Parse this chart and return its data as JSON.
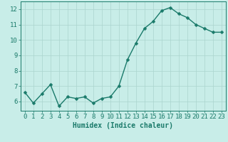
{
  "x": [
    0,
    1,
    2,
    3,
    4,
    5,
    6,
    7,
    8,
    9,
    10,
    11,
    12,
    13,
    14,
    15,
    16,
    17,
    18,
    19,
    20,
    21,
    22,
    23
  ],
  "y": [
    6.6,
    5.9,
    6.5,
    7.1,
    5.7,
    6.3,
    6.2,
    6.3,
    5.9,
    6.2,
    6.3,
    7.0,
    8.7,
    9.8,
    10.75,
    11.2,
    11.9,
    12.1,
    11.7,
    11.45,
    11.0,
    10.75,
    10.5,
    10.5
  ],
  "line_color": "#1a7a6a",
  "marker_color": "#1a7a6a",
  "bg_color": "#c8ede8",
  "grid_color": "#aad4ce",
  "xlabel": "Humidex (Indice chaleur)",
  "ylim": [
    5.4,
    12.5
  ],
  "xlim": [
    -0.5,
    23.5
  ],
  "yticks": [
    6,
    7,
    8,
    9,
    10,
    11,
    12
  ],
  "xticks": [
    0,
    1,
    2,
    3,
    4,
    5,
    6,
    7,
    8,
    9,
    10,
    11,
    12,
    13,
    14,
    15,
    16,
    17,
    18,
    19,
    20,
    21,
    22,
    23
  ],
  "xlabel_fontsize": 7,
  "tick_fontsize": 6.5,
  "line_width": 1.0,
  "marker_size": 2.5
}
